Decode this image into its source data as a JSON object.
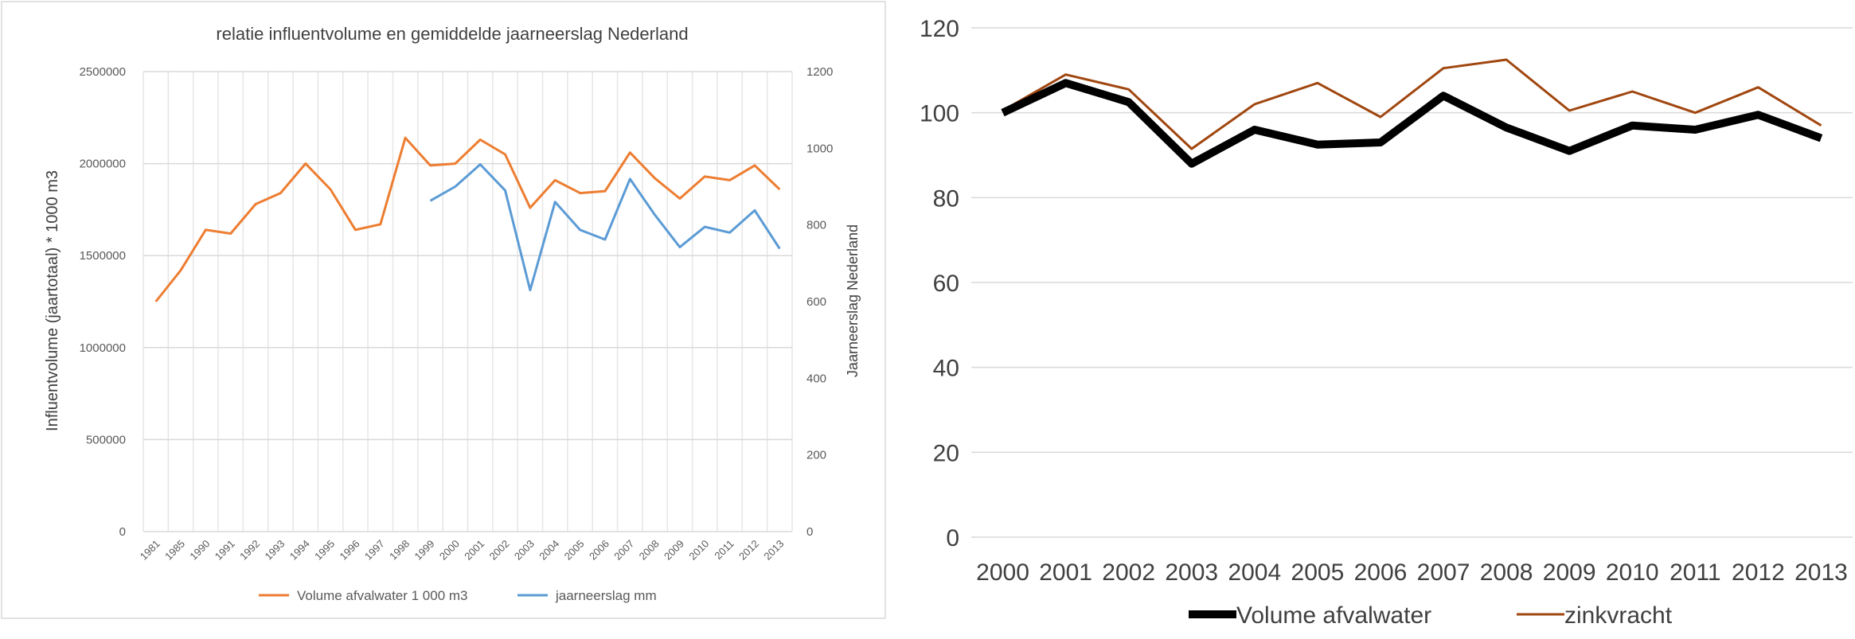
{
  "chart_data": [
    {
      "type": "line",
      "title": "relatie influentvolume en gemiddelde jaarneerslag Nederland",
      "ylabel": "Influentvolume (jaartotaal) * 1000 m3",
      "y2label": "Jaarneerslag Nederland",
      "ylim": [
        0,
        2500000
      ],
      "y2lim": [
        0,
        1200
      ],
      "yticks": [
        "0",
        "500000",
        "1000000",
        "1500000",
        "2000000",
        "2500000"
      ],
      "y2ticks": [
        "0",
        "200",
        "400",
        "600",
        "800",
        "1000",
        "1200"
      ],
      "x": [
        "1981",
        "1985",
        "1990",
        "1991",
        "1992",
        "1993",
        "1994",
        "1995",
        "1996",
        "1997",
        "1998",
        "1999",
        "2000",
        "2001",
        "2002",
        "2003",
        "2004",
        "2005",
        "2006",
        "2007",
        "2008",
        "2009",
        "2010",
        "2011",
        "2012",
        "2013"
      ],
      "grid": "horizontal and vertical",
      "legend_position": "bottom",
      "series": [
        {
          "name": "Volume afvalwater 1 000 m3",
          "color": "#ED7D31",
          "axis": "left",
          "points": [
            [
              "1981",
              1250000
            ],
            [
              "1985",
              1420000
            ],
            [
              "1990",
              1640000
            ],
            [
              "1991",
              1620000
            ],
            [
              "1992",
              1780000
            ],
            [
              "1993",
              1840000
            ],
            [
              "1994",
              2000000
            ],
            [
              "1995",
              1860000
            ],
            [
              "1996",
              1640000
            ],
            [
              "1997",
              1670000
            ],
            [
              "1998",
              2140000
            ],
            [
              "1999",
              1990000
            ],
            [
              "2000",
              2000000
            ],
            [
              "2001",
              2130000
            ],
            [
              "2002",
              2050000
            ],
            [
              "2003",
              1760000
            ],
            [
              "2004",
              1910000
            ],
            [
              "2005",
              1840000
            ],
            [
              "2006",
              1850000
            ],
            [
              "2007",
              2060000
            ],
            [
              "2008",
              1920000
            ],
            [
              "2009",
              1810000
            ],
            [
              "2010",
              1930000
            ],
            [
              "2011",
              1910000
            ],
            [
              "2012",
              1990000
            ],
            [
              "2013",
              1860000
            ]
          ]
        },
        {
          "name": "jaarneerslag mm",
          "color": "#5B9BD5",
          "axis": "right",
          "points": [
            [
              "1999",
              863
            ],
            [
              "2000",
              900
            ],
            [
              "2001",
              958
            ],
            [
              "2002",
              890
            ],
            [
              "2003",
              630
            ],
            [
              "2004",
              860
            ],
            [
              "2005",
              787
            ],
            [
              "2006",
              762
            ],
            [
              "2007",
              920
            ],
            [
              "2008",
              826
            ],
            [
              "2009",
              742
            ],
            [
              "2010",
              795
            ],
            [
              "2011",
              780
            ],
            [
              "2012",
              838
            ],
            [
              "2013",
              738
            ]
          ]
        }
      ]
    },
    {
      "type": "line",
      "title": "",
      "ylim": [
        0,
        120
      ],
      "yticks": [
        "0",
        "20",
        "40",
        "60",
        "80",
        "100",
        "120"
      ],
      "categories": [
        "2000",
        "2001",
        "2002",
        "2003",
        "2004",
        "2005",
        "2006",
        "2007",
        "2008",
        "2009",
        "2010",
        "2011",
        "2012",
        "2013"
      ],
      "grid": "horizontal",
      "legend_position": "bottom",
      "series": [
        {
          "name": "Volume afvalwater",
          "color": "#000000",
          "values": [
            100,
            107,
            102.5,
            88,
            96,
            92.5,
            93,
            104,
            96.5,
            91,
            97,
            96,
            99.5,
            94
          ]
        },
        {
          "name": "zinkvracht",
          "color": "#A0460F",
          "values": [
            100.5,
            109,
            105.5,
            91.5,
            102,
            107,
            99,
            110.5,
            112.5,
            100.5,
            105,
            100,
            106,
            97
          ]
        }
      ]
    }
  ]
}
